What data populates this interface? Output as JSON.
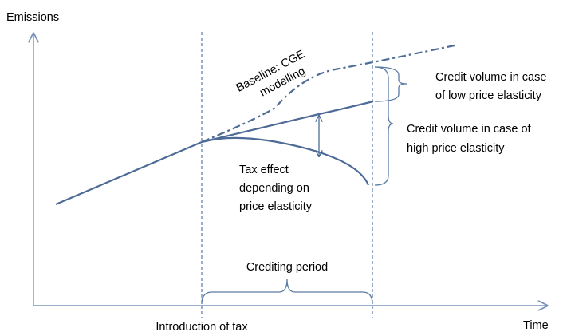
{
  "axes": {
    "y_label": "Emissions",
    "x_label": "Time"
  },
  "labels": {
    "baseline": [
      "Baseline: CGE",
      "modelling"
    ],
    "low_elasticity": [
      "Credit volume in case",
      "of low price elasticity"
    ],
    "high_elasticity": [
      "Credit volume in case of",
      "high price elasticity"
    ],
    "tax_effect": [
      "Tax effect",
      "depending on",
      "price elasticity"
    ],
    "crediting_period": "Crediting period",
    "introduction": "Introduction of tax"
  }
}
